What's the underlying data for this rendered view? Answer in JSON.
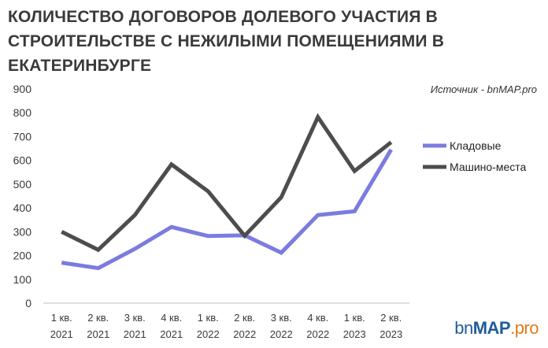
{
  "title_lines": [
    "КОЛИЧЕСТВО ДОГОВОРОВ ДОЛЕВОГО УЧАСТИЯ В",
    "СТРОИТЕЛЬСТВЕ С НЕЖИЛЫМИ ПОМЕЩЕНИЯМИ В",
    "ЕКАТЕРИНБУРГЕ"
  ],
  "source": "Источник - bnMAP.pro",
  "brand": {
    "part1": "bn",
    "part2": "MAP",
    "part3": ".pro"
  },
  "colors": {
    "series1": "#7b7be0",
    "series2": "#4d4d4d",
    "axis": "#bfbfbf",
    "text": "#3a3a3a"
  },
  "chart_data": {
    "type": "line",
    "categories": [
      [
        "1 кв.",
        "2021"
      ],
      [
        "2 кв.",
        "2021"
      ],
      [
        "3 кв.",
        "2021"
      ],
      [
        "4 кв.",
        "2021"
      ],
      [
        "1 кв.",
        "2022"
      ],
      [
        "2 кв.",
        "2022"
      ],
      [
        "3 кв.",
        "2022"
      ],
      [
        "4 кв.",
        "2022"
      ],
      [
        "1 кв.",
        "2023"
      ],
      [
        "2 кв.",
        "2023"
      ]
    ],
    "series": [
      {
        "name": "Кладовые",
        "color": "#7b7be0",
        "values": [
          170,
          147,
          228,
          320,
          282,
          285,
          212,
          370,
          386,
          645
        ]
      },
      {
        "name": "Машино-места",
        "color": "#4d4d4d",
        "values": [
          300,
          224,
          370,
          583,
          470,
          283,
          445,
          782,
          555,
          676
        ]
      }
    ],
    "ylim": [
      0,
      900
    ],
    "yticks": [
      0,
      100,
      200,
      300,
      400,
      500,
      600,
      700,
      800,
      900
    ],
    "grid": false,
    "legend_position": "right"
  }
}
